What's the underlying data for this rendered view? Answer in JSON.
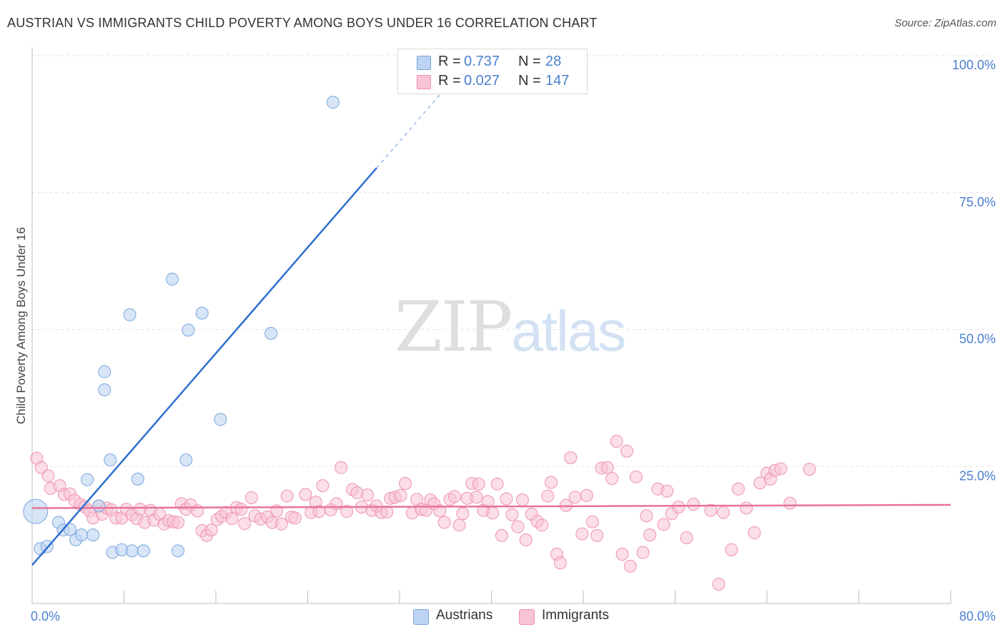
{
  "title": "AUSTRIAN VS IMMIGRANTS CHILD POVERTY AMONG BOYS UNDER 16 CORRELATION CHART",
  "source": "Source: ZipAtlas.com",
  "watermark": {
    "zip": "ZIP",
    "atlas": "atlas"
  },
  "legend": {
    "austrians": {
      "r_label": "R =",
      "r_value": "0.737",
      "n_label": "N =",
      "n_value": "28"
    },
    "immigrants": {
      "r_label": "R =",
      "r_value": "0.027",
      "n_label": "N =",
      "n_value": "147"
    }
  },
  "colors": {
    "austrians_fill": "#bcd4f2",
    "austrians_stroke": "#7aa6dc",
    "austrians_line": "#2e6fd0",
    "immigrants_fill": "#f8c3d4",
    "immigrants_stroke": "#ee93b0",
    "immigrants_line": "#e8739a",
    "axis_text": "#4a7fcf",
    "grid": "#e3e3e3"
  },
  "chart_data": {
    "type": "scatter",
    "title": "AUSTRIAN VS IMMIGRANTS CHILD POVERTY AMONG BOYS UNDER 16 CORRELATION CHART",
    "xlabel": "",
    "ylabel": "Child Poverty Among Boys Under 16",
    "xlim": [
      0,
      80
    ],
    "ylim": [
      0,
      100
    ],
    "x_ticks": [
      "0.0%",
      "80.0%"
    ],
    "y_ticks": [
      "25.0%",
      "50.0%",
      "75.0%",
      "100.0%"
    ],
    "y_tick_values": [
      25,
      50,
      75,
      100
    ],
    "grid": "horizontal dashed",
    "legend_position": "top-center",
    "series": [
      {
        "name": "Austrians",
        "r": 0.737,
        "n": 28,
        "trend": {
          "x": [
            0,
            30
          ],
          "y": [
            7.0,
            79.5
          ],
          "dashed_to": [
            37,
            96.5
          ]
        },
        "points": [
          [
            0.3,
            16.8
          ],
          [
            0.7,
            10.0
          ],
          [
            1.3,
            10.4
          ],
          [
            2.3,
            14.8
          ],
          [
            2.7,
            13.4
          ],
          [
            3.3,
            13.5
          ],
          [
            3.8,
            11.6
          ],
          [
            4.3,
            12.5
          ],
          [
            4.8,
            22.6
          ],
          [
            5.3,
            12.5
          ],
          [
            5.8,
            17.8
          ],
          [
            6.3,
            39.0
          ],
          [
            6.3,
            42.3
          ],
          [
            6.8,
            26.2
          ],
          [
            7.0,
            9.3
          ],
          [
            7.8,
            9.8
          ],
          [
            8.5,
            52.7
          ],
          [
            8.7,
            9.6
          ],
          [
            9.2,
            22.7
          ],
          [
            9.7,
            9.6
          ],
          [
            12.2,
            59.2
          ],
          [
            12.7,
            9.6
          ],
          [
            13.4,
            26.2
          ],
          [
            13.6,
            49.9
          ],
          [
            14.8,
            53.0
          ],
          [
            16.4,
            33.6
          ],
          [
            20.8,
            49.3
          ],
          [
            26.2,
            91.5
          ]
        ]
      },
      {
        "name": "Immigrants",
        "r": 0.027,
        "n": 147,
        "trend": {
          "x": [
            0,
            80
          ],
          "y": [
            17.4,
            18.0
          ]
        },
        "points": [
          [
            0.4,
            26.5
          ],
          [
            0.8,
            24.8
          ],
          [
            1.4,
            23.3
          ],
          [
            1.6,
            21.0
          ],
          [
            2.4,
            21.5
          ],
          [
            2.8,
            19.9
          ],
          [
            3.3,
            20.0
          ],
          [
            3.7,
            18.8
          ],
          [
            4.2,
            18.1
          ],
          [
            4.6,
            17.6
          ],
          [
            5.0,
            16.9
          ],
          [
            5.3,
            15.6
          ],
          [
            5.8,
            17.8
          ],
          [
            6.1,
            16.3
          ],
          [
            6.5,
            17.4
          ],
          [
            6.9,
            17.1
          ],
          [
            7.3,
            15.6
          ],
          [
            7.8,
            15.6
          ],
          [
            8.2,
            17.2
          ],
          [
            8.7,
            16.2
          ],
          [
            9.1,
            15.5
          ],
          [
            9.4,
            17.2
          ],
          [
            9.8,
            14.8
          ],
          [
            10.3,
            17.0
          ],
          [
            10.6,
            15.2
          ],
          [
            11.1,
            16.3
          ],
          [
            11.5,
            14.5
          ],
          [
            11.9,
            15.1
          ],
          [
            12.3,
            14.9
          ],
          [
            12.7,
            14.8
          ],
          [
            13.0,
            18.2
          ],
          [
            13.4,
            17.2
          ],
          [
            13.8,
            18.0
          ],
          [
            14.4,
            16.9
          ],
          [
            14.8,
            13.3
          ],
          [
            15.2,
            12.4
          ],
          [
            15.6,
            13.4
          ],
          [
            16.1,
            15.3
          ],
          [
            16.5,
            15.9
          ],
          [
            16.9,
            16.6
          ],
          [
            17.4,
            15.5
          ],
          [
            17.8,
            17.5
          ],
          [
            18.2,
            17.2
          ],
          [
            18.5,
            14.6
          ],
          [
            19.1,
            19.3
          ],
          [
            19.4,
            16.0
          ],
          [
            19.9,
            15.4
          ],
          [
            20.5,
            15.8
          ],
          [
            20.9,
            14.8
          ],
          [
            21.3,
            16.9
          ],
          [
            21.7,
            14.5
          ],
          [
            22.2,
            19.6
          ],
          [
            22.6,
            15.8
          ],
          [
            22.9,
            15.6
          ],
          [
            23.8,
            19.9
          ],
          [
            24.3,
            16.6
          ],
          [
            24.7,
            18.5
          ],
          [
            25.0,
            16.8
          ],
          [
            25.3,
            21.5
          ],
          [
            26.0,
            17.1
          ],
          [
            26.5,
            18.2
          ],
          [
            26.9,
            24.8
          ],
          [
            27.4,
            16.8
          ],
          [
            27.9,
            20.8
          ],
          [
            28.3,
            20.2
          ],
          [
            28.7,
            17.6
          ],
          [
            29.2,
            19.8
          ],
          [
            29.6,
            17.0
          ],
          [
            30.0,
            17.8
          ],
          [
            30.4,
            16.6
          ],
          [
            30.9,
            16.7
          ],
          [
            31.2,
            19.2
          ],
          [
            31.6,
            19.4
          ],
          [
            32.1,
            19.7
          ],
          [
            32.5,
            21.9
          ],
          [
            33.1,
            16.5
          ],
          [
            33.5,
            19.0
          ],
          [
            33.9,
            17.2
          ],
          [
            34.3,
            17.0
          ],
          [
            34.7,
            18.9
          ],
          [
            35.0,
            18.2
          ],
          [
            35.5,
            16.9
          ],
          [
            35.9,
            14.8
          ],
          [
            36.4,
            19.0
          ],
          [
            36.8,
            19.5
          ],
          [
            37.2,
            14.3
          ],
          [
            37.5,
            16.4
          ],
          [
            37.9,
            19.2
          ],
          [
            38.3,
            21.9
          ],
          [
            38.7,
            19.4
          ],
          [
            38.9,
            21.8
          ],
          [
            39.3,
            17.0
          ],
          [
            39.7,
            18.6
          ],
          [
            40.1,
            16.5
          ],
          [
            40.5,
            21.8
          ],
          [
            40.9,
            12.4
          ],
          [
            41.3,
            19.1
          ],
          [
            41.8,
            16.2
          ],
          [
            42.3,
            14.0
          ],
          [
            42.7,
            18.9
          ],
          [
            43.0,
            11.6
          ],
          [
            43.5,
            16.3
          ],
          [
            44.0,
            15.0
          ],
          [
            44.4,
            14.3
          ],
          [
            44.9,
            19.6
          ],
          [
            45.2,
            22.1
          ],
          [
            45.7,
            9.0
          ],
          [
            46.0,
            7.4
          ],
          [
            46.5,
            17.9
          ],
          [
            46.9,
            26.6
          ],
          [
            47.3,
            19.4
          ],
          [
            47.9,
            12.7
          ],
          [
            48.3,
            19.7
          ],
          [
            48.8,
            14.9
          ],
          [
            49.2,
            12.4
          ],
          [
            49.6,
            24.7
          ],
          [
            50.1,
            24.8
          ],
          [
            50.5,
            22.8
          ],
          [
            50.9,
            29.6
          ],
          [
            51.4,
            9.0
          ],
          [
            51.8,
            27.8
          ],
          [
            52.1,
            6.8
          ],
          [
            52.6,
            23.1
          ],
          [
            53.2,
            9.3
          ],
          [
            53.5,
            16.0
          ],
          [
            53.8,
            12.5
          ],
          [
            54.5,
            20.9
          ],
          [
            55.0,
            14.4
          ],
          [
            55.3,
            20.5
          ],
          [
            55.7,
            16.4
          ],
          [
            56.3,
            17.6
          ],
          [
            57.0,
            12.0
          ],
          [
            57.6,
            18.1
          ],
          [
            59.1,
            17.0
          ],
          [
            60.2,
            16.6
          ],
          [
            59.8,
            3.5
          ],
          [
            60.9,
            9.8
          ],
          [
            61.5,
            20.9
          ],
          [
            62.2,
            17.4
          ],
          [
            62.9,
            12.9
          ],
          [
            63.4,
            22.0
          ],
          [
            64.0,
            23.8
          ],
          [
            64.3,
            22.7
          ],
          [
            64.7,
            24.3
          ],
          [
            65.2,
            24.6
          ],
          [
            66.0,
            18.3
          ],
          [
            67.7,
            24.5
          ]
        ]
      }
    ]
  },
  "bottom_legend": {
    "austrians": "Austrians",
    "immigrants": "Immigrants"
  }
}
